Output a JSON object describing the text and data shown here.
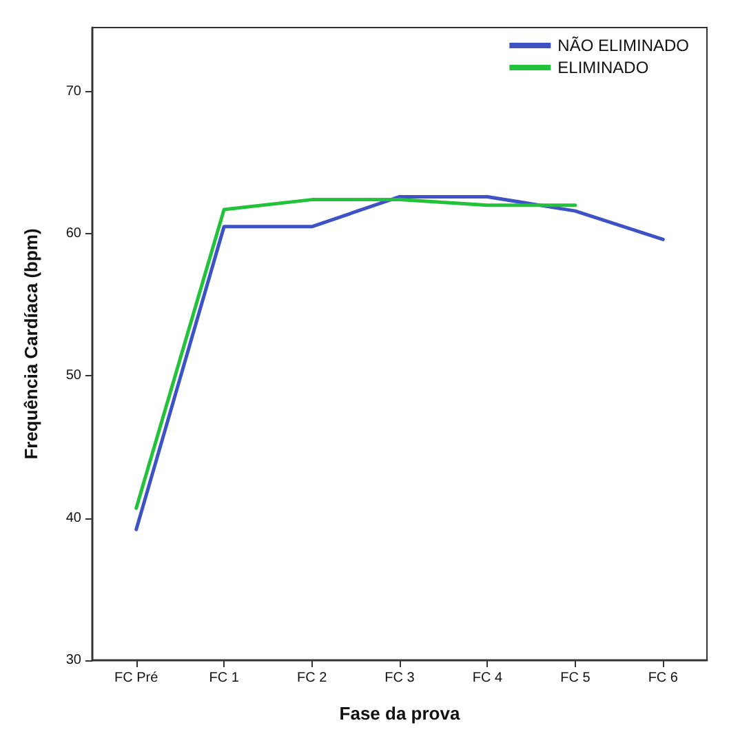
{
  "chart_data": {
    "type": "line",
    "xlabel": "Fase da prova",
    "ylabel": "Frequência Cardíaca (bpm)",
    "categories": [
      "FC Pré",
      "FC 1",
      "FC 2",
      "FC 3",
      "FC 4",
      "FC 5",
      "FC 6"
    ],
    "series": [
      {
        "name": "NÃO ELIMINADO",
        "color": "#3d52c4",
        "values": [
          39.2,
          60.5,
          60.5,
          62.6,
          62.6,
          61.6,
          59.6
        ]
      },
      {
        "name": "ELIMINADO",
        "color": "#22c33a",
        "values": [
          40.7,
          61.7,
          62.4,
          62.4,
          62.0,
          62.0,
          null
        ]
      }
    ],
    "ylim": [
      30,
      74.5
    ],
    "yticks": [
      30,
      40,
      50,
      60,
      70
    ],
    "grid": false,
    "legend": "top right",
    "marker": "none",
    "line_style": "solid"
  }
}
